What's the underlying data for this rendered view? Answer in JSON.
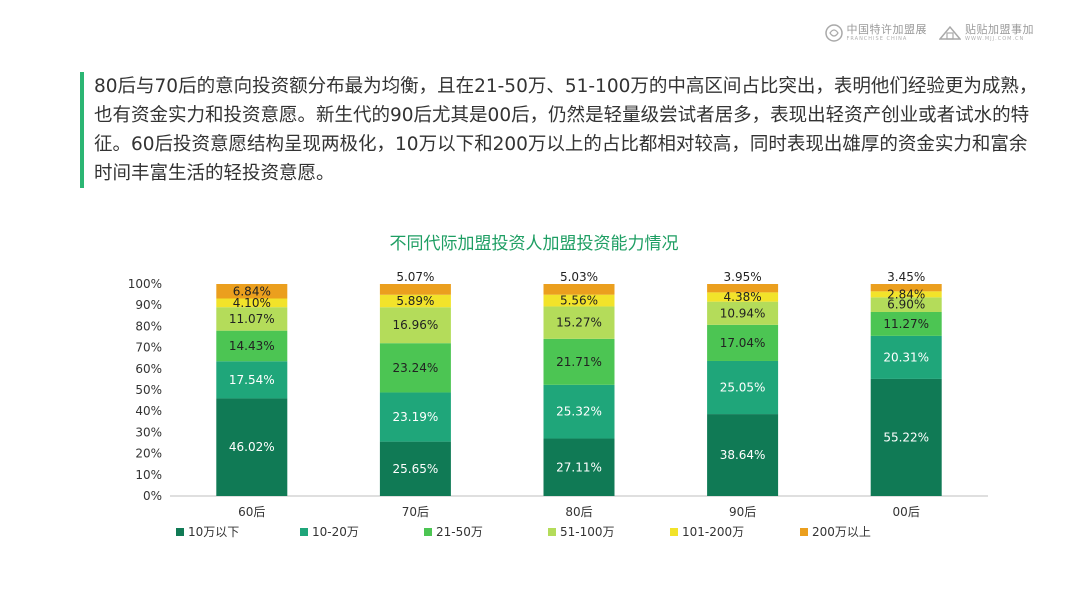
{
  "intro_text": "80后与70后的意向投资额分布最为均衡，且在21-50万、51-100万的中高区间占比突出，表明他们经验更为成熟，也有资金实力和投资意愿。新生代的90后尤其是00后，仍然是轻量级尝试者居多，表现出轻资产创业或者试水的特征。60后投资意愿结构呈现两极化，10万以下和200万以上的占比都相对较高，同时表现出雄厚的资金实力和富余时间丰富生活的轻投资意愿。",
  "logos": {
    "left": {
      "main": "中国特许加盟展",
      "sub": "FRANCHISE CHINA"
    },
    "right": {
      "main": "贴贴加盟事加",
      "sub": "WWW.MJJ.COM.CN"
    }
  },
  "colors": {
    "accent": "#2bb673",
    "title": "#1e9e63",
    "series": [
      "#107a55",
      "#1fa67a",
      "#4cc553",
      "#b4dc5a",
      "#f2e32a",
      "#eb9f1e"
    ]
  },
  "chart_data": {
    "type": "bar",
    "stacked": true,
    "title": "不同代际加盟投资人加盟投资能力情况",
    "categories": [
      "60后",
      "70后",
      "80后",
      "90后",
      "00后"
    ],
    "ylim": [
      0,
      100
    ],
    "yticks": [
      "0%",
      "10%",
      "20%",
      "30%",
      "40%",
      "50%",
      "60%",
      "70%",
      "80%",
      "90%",
      "100%"
    ],
    "series": [
      {
        "name": "10万以下",
        "values": [
          46.02,
          25.65,
          27.11,
          38.64,
          55.22
        ],
        "labels": [
          "46.02%",
          "25.65%",
          "27.11%",
          "38.64%",
          "55.22%"
        ]
      },
      {
        "name": "10-20万",
        "values": [
          17.54,
          23.19,
          25.32,
          25.05,
          20.31
        ],
        "labels": [
          "17.54%",
          "23.19%",
          "25.32%",
          "25.05%",
          "20.31%"
        ]
      },
      {
        "name": "21-50万",
        "values": [
          14.43,
          23.24,
          21.71,
          17.04,
          11.27
        ],
        "labels": [
          "14.43%",
          "23.24%",
          "21.71%",
          "17.04%",
          "11.27%"
        ]
      },
      {
        "name": "51-100万",
        "values": [
          11.07,
          16.96,
          15.27,
          10.94,
          6.9
        ],
        "labels": [
          "11.07%",
          "16.96%",
          "15.27%",
          "10.94%",
          "6.90%"
        ]
      },
      {
        "name": "101-200万",
        "values": [
          4.1,
          5.89,
          5.56,
          4.38,
          2.84
        ],
        "labels": [
          "4.10%",
          "5.89%",
          "5.56%",
          "4.38%",
          "2.84%"
        ]
      },
      {
        "name": "200万以上",
        "values": [
          6.84,
          5.07,
          5.03,
          3.95,
          3.45
        ],
        "labels": [
          "6.84%",
          "5.07%",
          "5.03%",
          "3.95%",
          "3.45%"
        ]
      }
    ],
    "legend_position": "bottom",
    "grid": false
  }
}
